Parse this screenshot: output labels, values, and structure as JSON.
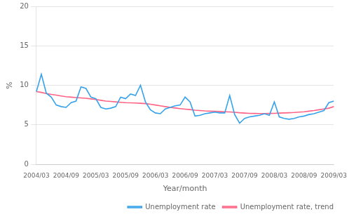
{
  "chart_data": {
    "type": "line",
    "xlabel": "Year/month",
    "ylabel": "%",
    "categories": [
      "2004/03",
      null,
      null,
      null,
      null,
      null,
      "2004/09",
      null,
      null,
      null,
      null,
      null,
      "2005/03",
      null,
      null,
      null,
      null,
      null,
      "2005/09",
      null,
      null,
      null,
      null,
      null,
      "2006/03",
      null,
      null,
      null,
      null,
      null,
      "2006/09",
      null,
      null,
      null,
      null,
      null,
      "2007/03",
      null,
      null,
      null,
      null,
      null,
      "2007/09",
      null,
      null,
      null,
      null,
      null,
      "2008/03",
      null,
      null,
      null,
      null,
      null,
      "2008/09",
      null,
      null,
      null,
      null,
      null,
      "2009/03"
    ],
    "series": [
      {
        "name": "Unemployment rate",
        "values": [
          9.2,
          11.4,
          9.0,
          8.5,
          7.5,
          7.3,
          7.2,
          7.8,
          8.0,
          9.8,
          9.6,
          8.5,
          8.3,
          7.2,
          7.0,
          7.1,
          7.3,
          8.5,
          8.3,
          8.9,
          8.7,
          10.0,
          7.9,
          6.9,
          6.5,
          6.4,
          7.0,
          7.2,
          7.4,
          7.5,
          8.5,
          7.9,
          6.1,
          6.2,
          6.4,
          6.5,
          6.6,
          6.5,
          6.5,
          8.7,
          6.3,
          5.2,
          5.8,
          6.0,
          6.1,
          6.2,
          6.4,
          6.2,
          7.9,
          6.0,
          5.8,
          5.7,
          5.8,
          6.0,
          6.1,
          6.3,
          6.4,
          6.6,
          6.8,
          7.8,
          8.0
        ]
      },
      {
        "name": "Unemployment rate, trend",
        "values": [
          9.2,
          9.1,
          8.95,
          8.85,
          8.75,
          8.65,
          8.55,
          8.5,
          8.45,
          8.4,
          8.35,
          8.28,
          8.2,
          8.1,
          8.0,
          7.95,
          7.9,
          7.85,
          7.8,
          7.78,
          7.75,
          7.72,
          7.68,
          7.6,
          7.5,
          7.4,
          7.3,
          7.2,
          7.12,
          7.05,
          6.98,
          6.92,
          6.85,
          6.8,
          6.75,
          6.72,
          6.7,
          6.68,
          6.65,
          6.62,
          6.58,
          6.52,
          6.48,
          6.45,
          6.43,
          6.42,
          6.42,
          6.43,
          6.45,
          6.48,
          6.5,
          6.52,
          6.55,
          6.6,
          6.65,
          6.72,
          6.8,
          6.9,
          7.0,
          7.1,
          7.3
        ]
      }
    ],
    "ylim": [
      0,
      20
    ],
    "yticks": [
      0,
      5,
      10,
      15,
      20
    ],
    "grid": true,
    "legend": "lower right"
  }
}
